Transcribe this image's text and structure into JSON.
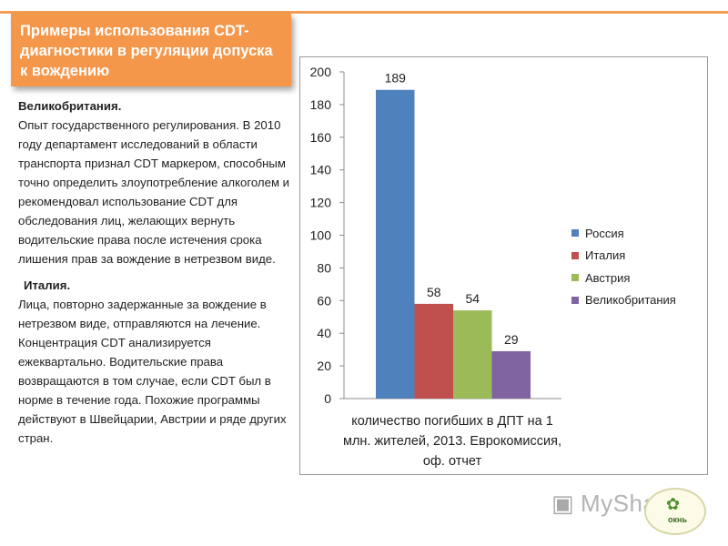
{
  "slide": {
    "title": "Примеры использования CDT-диагностики  в регуляции допуска к вождению",
    "paragraphs": [
      {
        "country": "Великобритания.",
        "body": "Опыт государственного регулирования. В 2010 году департамент исследований в области транспорта  признал CDT маркером, способным точно определить злоупотребление алкоголем и рекомендовал использование CDT  для обследования лиц, желающих вернуть водительские права после истечения  срока лишения прав за вождение в нетрезвом виде."
      },
      {
        "country": "Италия.",
        "body": "Лица, повторно задержанные за вождение в нетрезвом виде, отправляются на лечение. Концентрация  CDT анализируется ежеквартально. Водительские права возвращаются в том случае, если CDT был в норме в течение года. Похожие программы действуют в Швейцарии,  Австрии и ряде других стран."
      }
    ],
    "logo": {
      "text": "MyShared",
      "badge": "окнь",
      "icon": "presentation-screen-icon"
    }
  },
  "colors": {
    "accent": "#f4974b",
    "russia": "#4f81bd",
    "italy": "#c0504d",
    "austria": "#9bbb59",
    "uk": "#8064a2"
  },
  "chart_data": {
    "type": "bar",
    "categories": [
      "количество погибших в ДПТ на 1 млн. жителей, 2013. Еврокомиссия, оф. отчет"
    ],
    "xlabel": "количество погибших в ДПТ на 1 млн. жителей, 2013. Еврокомиссия, оф. отчет",
    "ylabel": "",
    "ylim": [
      0,
      200
    ],
    "yticks": [
      "0",
      "20",
      "40",
      "60",
      "80",
      "100",
      "120",
      "140",
      "160",
      "180",
      "200"
    ],
    "grid": false,
    "legend_position": "right",
    "series": [
      {
        "name": "Россия",
        "values": [
          189
        ],
        "label": "189",
        "color": "#4f81bd"
      },
      {
        "name": "Италия",
        "values": [
          58
        ],
        "label": "58",
        "color": "#c0504d"
      },
      {
        "name": "Австрия",
        "values": [
          54
        ],
        "label": "54",
        "color": "#9bbb59"
      },
      {
        "name": "Великобритания",
        "values": [
          29
        ],
        "label": "29",
        "color": "#8064a2"
      }
    ]
  }
}
